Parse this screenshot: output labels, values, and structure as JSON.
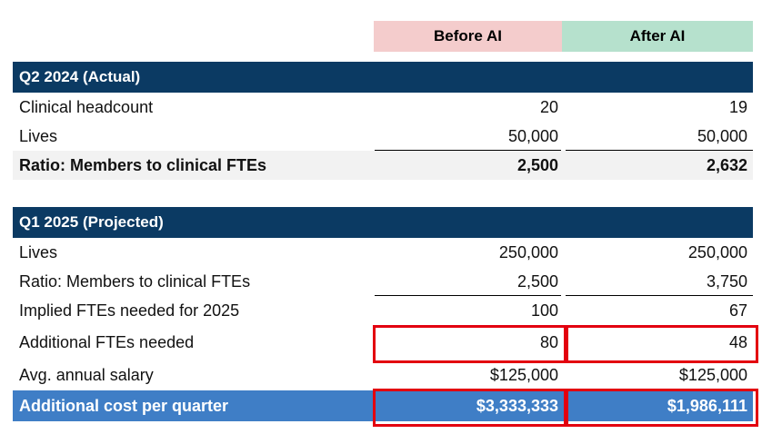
{
  "columns": {
    "before": "Before AI",
    "after": "After AI"
  },
  "colors": {
    "before_header": "#f4cccc",
    "after_header": "#b6e1cd",
    "section_band": "#0b3a63",
    "highlight_row": "#3f7ec6",
    "red_outline": "#e3000f"
  },
  "q2": {
    "title": "Q2 2024 (Actual)",
    "rows": [
      {
        "label": "Clinical headcount",
        "before": "20",
        "after": "19"
      },
      {
        "label": "Lives",
        "before": "50,000",
        "after": "50,000"
      },
      {
        "label": "Ratio: Members to clinical FTEs",
        "before": "2,500",
        "after": "2,632"
      }
    ]
  },
  "q1": {
    "title": "Q1 2025 (Projected)",
    "rows": [
      {
        "label": "Lives",
        "before": "250,000",
        "after": "250,000"
      },
      {
        "label": "Ratio: Members to clinical FTEs",
        "before": "2,500",
        "after": "3,750"
      },
      {
        "label": "Implied FTEs needed for 2025",
        "before": "100",
        "after": "67"
      },
      {
        "label": "Additional FTEs needed",
        "before": "80",
        "after": "48"
      },
      {
        "label": "Avg. annual salary",
        "before": "$125,000",
        "after": "$125,000"
      },
      {
        "label": "Additional cost per quarter",
        "before": "$3,333,333",
        "after": "$1,986,111"
      }
    ]
  }
}
